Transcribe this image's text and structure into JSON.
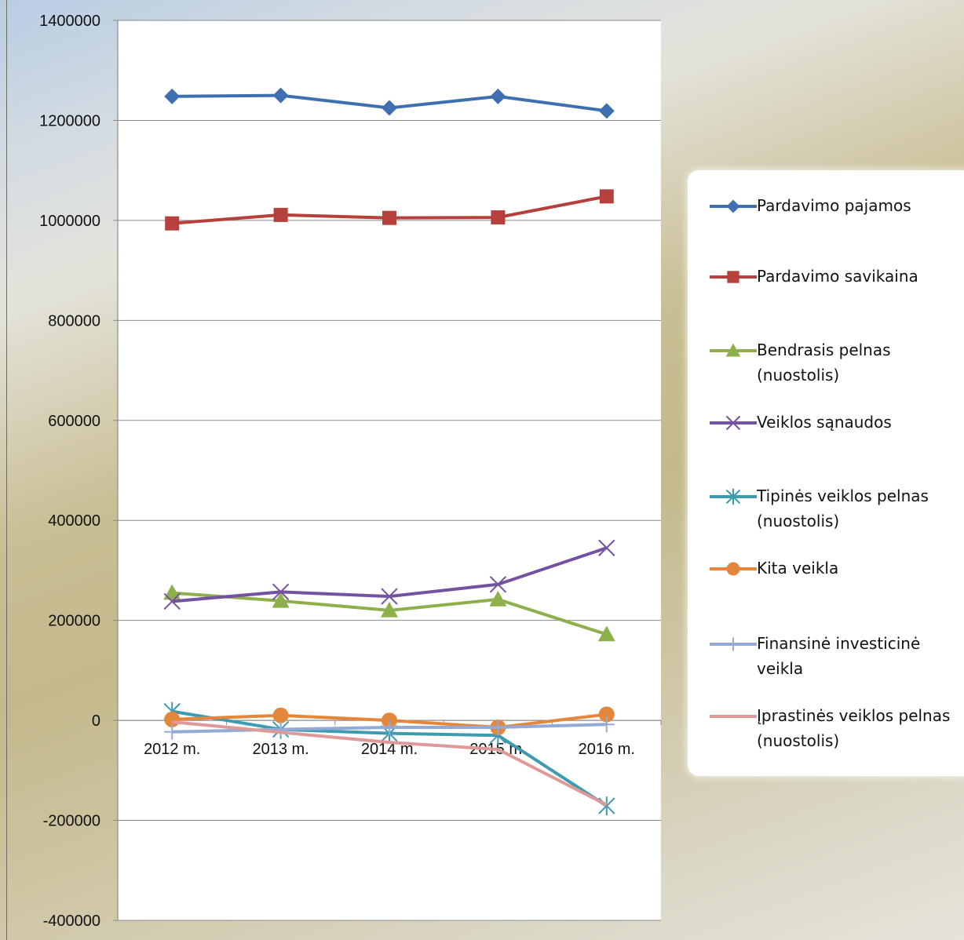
{
  "chart_data": {
    "type": "line",
    "title": "",
    "xlabel": "",
    "ylabel": "",
    "categories": [
      "2012 m.",
      "2013 m.",
      "2014 m.",
      "2015 m.",
      "2016 m."
    ],
    "ylim": [
      -400000,
      1400000
    ],
    "yticks": [
      1400000,
      1200000,
      1000000,
      800000,
      600000,
      400000,
      200000,
      0,
      -200000,
      -400000
    ],
    "yticks_labels": [
      "1400000",
      "1200000",
      "1000000",
      "800000",
      "600000",
      "400000",
      "200000",
      "0",
      "-200000",
      "-400000"
    ],
    "grid": true,
    "legend_position": "right",
    "series": [
      {
        "name": "Pardavimo pajamos",
        "color": "#3e6fb0",
        "marker": "diamond",
        "values": [
          1248000,
          1250000,
          1225000,
          1248000,
          1219000
        ]
      },
      {
        "name": "Pardavimo savikaina",
        "color": "#b5403c",
        "marker": "square",
        "values": [
          994000,
          1011000,
          1005000,
          1006000,
          1048000
        ]
      },
      {
        "name": "Bendrasis pelnas (nuostolis)",
        "color": "#8db04a",
        "marker": "triangle",
        "values": [
          255000,
          239000,
          220000,
          242000,
          172000
        ]
      },
      {
        "name": "Veiklos sąnaudos",
        "color": "#7552a0",
        "marker": "x",
        "values": [
          238000,
          257000,
          248000,
          272000,
          345000
        ]
      },
      {
        "name": "Tipinės veiklos pelnas (nuostolis)",
        "color": "#3d9bb0",
        "marker": "star",
        "values": [
          18000,
          -18000,
          -26000,
          -30000,
          -171000
        ]
      },
      {
        "name": "Kita veikla",
        "color": "#e5873a",
        "marker": "circle",
        "values": [
          2000,
          10000,
          0,
          -14000,
          12000
        ]
      },
      {
        "name": "Finansinė investicinė veikla",
        "color": "#93aad6",
        "marker": "plus",
        "values": [
          -23000,
          -18000,
          -14000,
          -14000,
          -8000
        ]
      },
      {
        "name": "Įprastinės veiklos pelnas (nuostolis)",
        "color": "#dd9a98",
        "marker": "none",
        "values": [
          -3000,
          -24000,
          -44000,
          -58000,
          -169000
        ]
      }
    ]
  }
}
